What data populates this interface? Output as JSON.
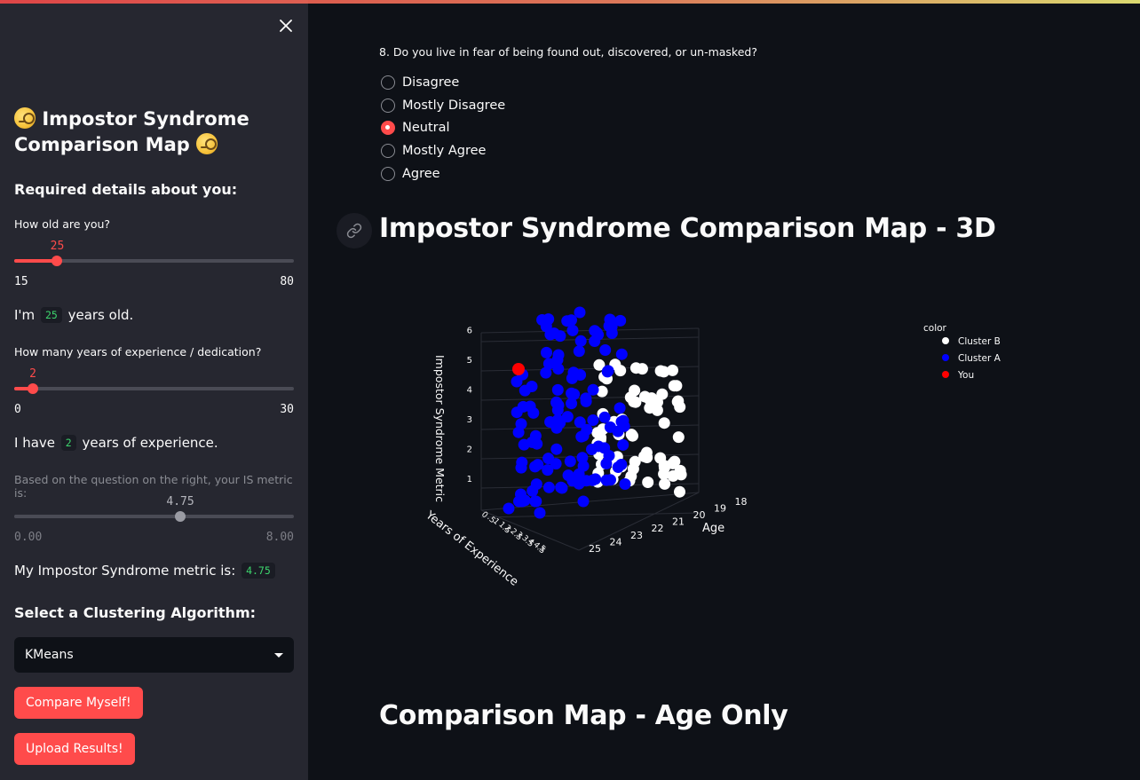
{
  "sidebar": {
    "title_line1": "Impostor Syndrome",
    "title_line2": "Comparison Map",
    "required_heading": "Required details about you:",
    "age_question": "How old are you?",
    "age_slider": {
      "value": "25",
      "min": "15",
      "max": "80",
      "numeric_value": 25,
      "numeric_min": 15,
      "numeric_max": 80
    },
    "age_sentence": {
      "prefix": "I'm",
      "value": "25",
      "suffix": "years old."
    },
    "experience_question": "How many years of experience / dedication?",
    "experience_slider": {
      "value": "2",
      "min": "0",
      "max": "30",
      "numeric_value": 2,
      "numeric_min": 0,
      "numeric_max": 30
    },
    "experience_sentence": {
      "prefix": "I have",
      "value": "2",
      "suffix": "years of experience."
    },
    "metric_note": "Based on the question on the right, your IS metric is:",
    "metric_slider": {
      "value": "4.75",
      "min": "0.00",
      "max": "8.00",
      "numeric_value": 4.75,
      "numeric_min": 0,
      "numeric_max": 8
    },
    "metric_sentence": {
      "prefix": "My Impostor Syndrome metric is:",
      "value": "4.75"
    },
    "algorithm_heading": "Select a Clustering Algorithm:",
    "algorithm_selected": "KMeans",
    "compare_button": "Compare Myself!",
    "upload_button": "Upload Results!"
  },
  "main": {
    "question": "8. Do you live in fear of being found out, discovered, or un-masked?",
    "options": [
      "Disagree",
      "Mostly Disagree",
      "Neutral",
      "Mostly Agree",
      "Agree"
    ],
    "selected_option": "Neutral",
    "heading_3d": "Impostor Syndrome Comparison Map - 3D",
    "heading_age": "Comparison Map - Age Only"
  },
  "colors": {
    "accent": "#ff4b4b",
    "cluster_a": "#0000ff",
    "cluster_b": "#ffffff",
    "you": "#ff0000",
    "sidebar_bg": "#262730",
    "main_bg": "#0e1117"
  },
  "chart_data": {
    "type": "scatter",
    "title": "Impostor Syndrome Comparison Map - 3D",
    "zlabel": "Impostor Syndrome Metric",
    "xlabel": "Years of Experience",
    "ylabel": "Age",
    "z_ticks": [
      "1",
      "2",
      "3",
      "4",
      "5",
      "6"
    ],
    "x_ticks": [
      "0",
      ".5",
      "1",
      "1.5",
      "2",
      "2.5",
      "3",
      "3.5",
      "4",
      "4.5",
      "5"
    ],
    "y_ticks": [
      "25",
      "24",
      "23",
      "22",
      "21",
      "20",
      "19",
      "18"
    ],
    "legend_title": "color",
    "series": [
      {
        "name": "Cluster B",
        "color": "#ffffff"
      },
      {
        "name": "Cluster A",
        "color": "#0000ff"
      },
      {
        "name": "You",
        "color": "#ff0000",
        "points": [
          {
            "experience": 2,
            "age": 25,
            "metric": 4.75
          }
        ]
      }
    ]
  }
}
